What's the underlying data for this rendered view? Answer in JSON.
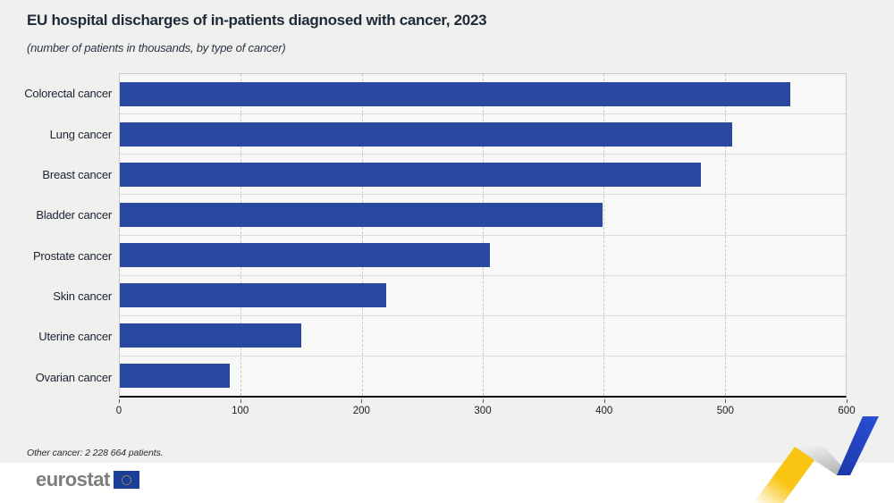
{
  "header": {
    "title": "EU hospital discharges of in-patients diagnosed with cancer, 2023",
    "subtitle": "(number of patients in thousands, by type of cancer)"
  },
  "chart_data": {
    "type": "bar",
    "orientation": "horizontal",
    "title": "EU hospital discharges of in-patients diagnosed with cancer, 2023",
    "subtitle": "(number of patients in thousands, by type of cancer)",
    "categories": [
      "Colorectal cancer",
      "Lung cancer",
      "Breast cancer",
      "Bladder cancer",
      "Prostate cancer",
      "Skin cancer",
      "Uterine cancer",
      "Ovarian cancer"
    ],
    "values": [
      554,
      506,
      480,
      399,
      306,
      220,
      150,
      91
    ],
    "unit": "thousands of patients",
    "xlim": [
      0,
      600
    ],
    "x_ticks": [
      0,
      100,
      200,
      300,
      400,
      500,
      600
    ],
    "grid": "vertical-dashed",
    "legend": "none",
    "bar_color": "#2a47a1"
  },
  "footnote": {
    "text": "Other cancer: 2 228 664 patients."
  },
  "footer": {
    "logo_text": "eurostat"
  },
  "colors": {
    "page_background": "#f0f0ee",
    "plot_background": "#f8f8f6",
    "bar": "#2a47a1",
    "ribbon_yellow": "#f9c412",
    "ribbon_blue": "#2446c8",
    "flag_blue": "#1c3e9b",
    "star_yellow": "#ffcc00"
  }
}
